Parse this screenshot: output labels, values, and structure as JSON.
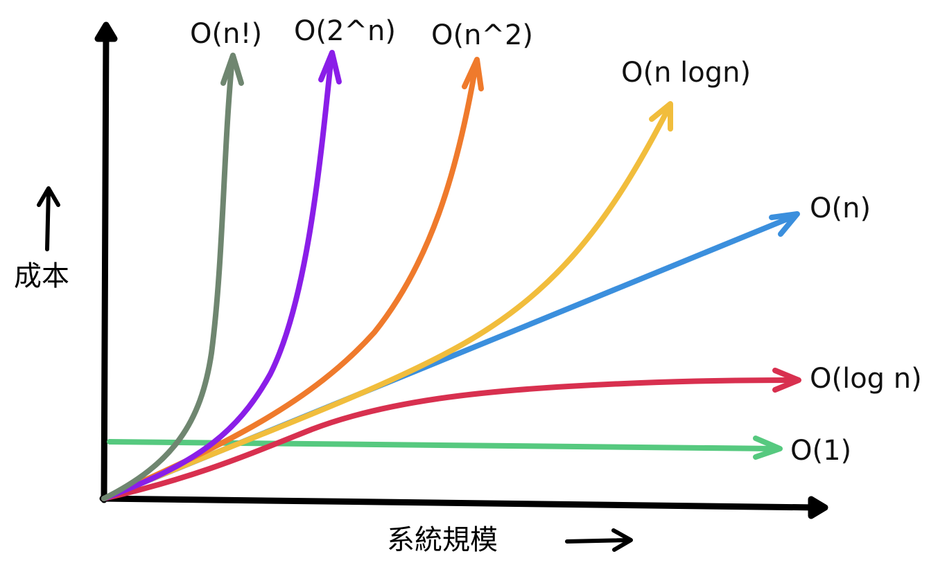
{
  "y_axis": {
    "label": "成本"
  },
  "x_axis": {
    "label": "系統規模"
  },
  "curves": [
    {
      "id": "factorial",
      "label": "O(n!)",
      "color": "#6f8670"
    },
    {
      "id": "exponential",
      "label": "O(2^n)",
      "color": "#8a1ee8"
    },
    {
      "id": "quadratic",
      "label": "O(n^2)",
      "color": "#ef7a2c"
    },
    {
      "id": "linearithmic",
      "label": "O(n logn)",
      "color": "#f1bd3c"
    },
    {
      "id": "linear",
      "label": "O(n)",
      "color": "#3b8fdd"
    },
    {
      "id": "logarithmic",
      "label": "O(log n)",
      "color": "#d8304f"
    },
    {
      "id": "constant",
      "label": "O(1)",
      "color": "#56c97f"
    }
  ]
}
